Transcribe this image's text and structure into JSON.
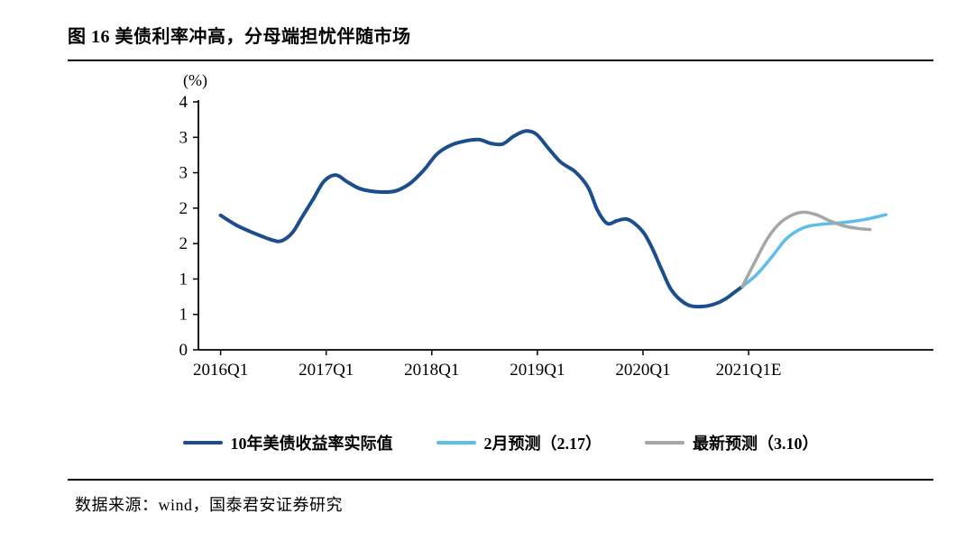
{
  "header": {
    "title": "图 16  美债利率冲高，分母端担忧伴随市场"
  },
  "footer": {
    "source": "数据来源：wind，国泰君安证券研究"
  },
  "chart_data": {
    "type": "line",
    "title": "美债利率冲高，分母端担忧伴随市场",
    "unit_label": "(%)",
    "xlabel": "",
    "ylabel": "(%)",
    "ylim": [
      0,
      4
    ],
    "y_tick_labels": [
      "4",
      "3",
      "3",
      "2",
      "2",
      "1",
      "1",
      "0"
    ],
    "x_range": [
      2015.79,
      2022.75
    ],
    "x_ticks": [
      {
        "year": 2016,
        "label": "2016Q1"
      },
      {
        "year": 2017,
        "label": "2017Q1"
      },
      {
        "year": 2018,
        "label": "2018Q1"
      },
      {
        "year": 2019,
        "label": "2019Q1"
      },
      {
        "year": 2020,
        "label": "2020Q1"
      },
      {
        "year": 2021,
        "label": "2021Q1E"
      }
    ],
    "grid": false,
    "legend_position": "bottom",
    "axis_color": "#000000",
    "series": [
      {
        "name": "10年美债收益率实际值",
        "color": "#1c4e8e",
        "width": 4,
        "points": [
          [
            2016.0,
            2.17
          ],
          [
            2016.15,
            2.01
          ],
          [
            2016.32,
            1.88
          ],
          [
            2016.49,
            1.77
          ],
          [
            2016.58,
            1.76
          ],
          [
            2016.68,
            1.89
          ],
          [
            2016.77,
            2.14
          ],
          [
            2016.88,
            2.44
          ],
          [
            2016.98,
            2.72
          ],
          [
            2017.09,
            2.82
          ],
          [
            2017.2,
            2.71
          ],
          [
            2017.32,
            2.6
          ],
          [
            2017.48,
            2.55
          ],
          [
            2017.65,
            2.56
          ],
          [
            2017.79,
            2.68
          ],
          [
            2017.92,
            2.89
          ],
          [
            2018.05,
            3.16
          ],
          [
            2018.18,
            3.3
          ],
          [
            2018.32,
            3.37
          ],
          [
            2018.45,
            3.39
          ],
          [
            2018.56,
            3.33
          ],
          [
            2018.67,
            3.32
          ],
          [
            2018.78,
            3.45
          ],
          [
            2018.89,
            3.53
          ],
          [
            2018.99,
            3.48
          ],
          [
            2019.1,
            3.26
          ],
          [
            2019.22,
            3.03
          ],
          [
            2019.36,
            2.87
          ],
          [
            2019.48,
            2.62
          ],
          [
            2019.57,
            2.25
          ],
          [
            2019.66,
            2.04
          ],
          [
            2019.75,
            2.08
          ],
          [
            2019.84,
            2.11
          ],
          [
            2019.92,
            2.04
          ],
          [
            2020.01,
            1.88
          ],
          [
            2020.09,
            1.63
          ],
          [
            2020.18,
            1.28
          ],
          [
            2020.26,
            0.99
          ],
          [
            2020.35,
            0.81
          ],
          [
            2020.45,
            0.71
          ],
          [
            2020.57,
            0.7
          ],
          [
            2020.68,
            0.74
          ],
          [
            2020.77,
            0.81
          ],
          [
            2020.86,
            0.92
          ],
          [
            2020.94,
            1.02
          ]
        ]
      },
      {
        "name": "2月预测（2.17）",
        "color": "#5fbde9",
        "width": 3.5,
        "points": [
          [
            2020.94,
            1.02
          ],
          [
            2021.08,
            1.22
          ],
          [
            2021.22,
            1.5
          ],
          [
            2021.35,
            1.78
          ],
          [
            2021.47,
            1.93
          ],
          [
            2021.58,
            2.0
          ],
          [
            2021.72,
            2.03
          ],
          [
            2021.87,
            2.05
          ],
          [
            2022.02,
            2.08
          ],
          [
            2022.15,
            2.12
          ],
          [
            2022.3,
            2.18
          ]
        ]
      },
      {
        "name": "最新预测（3.10）",
        "color": "#a6a6a6",
        "width": 3.5,
        "points": [
          [
            2020.94,
            1.02
          ],
          [
            2021.06,
            1.42
          ],
          [
            2021.18,
            1.8
          ],
          [
            2021.3,
            2.05
          ],
          [
            2021.42,
            2.18
          ],
          [
            2021.52,
            2.22
          ],
          [
            2021.64,
            2.18
          ],
          [
            2021.77,
            2.08
          ],
          [
            2021.9,
            2.0
          ],
          [
            2022.03,
            1.96
          ],
          [
            2022.15,
            1.94
          ]
        ]
      }
    ]
  }
}
